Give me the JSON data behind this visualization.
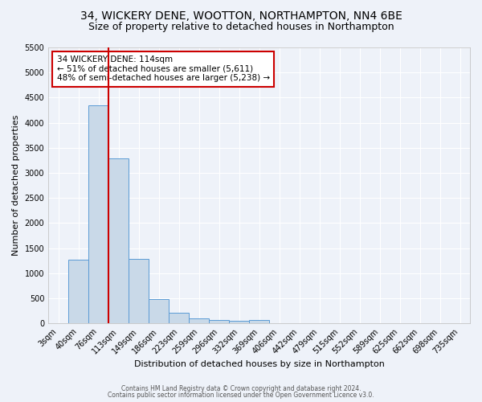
{
  "title": "34, WICKERY DENE, WOOTTON, NORTHAMPTON, NN4 6BE",
  "subtitle": "Size of property relative to detached houses in Northampton",
  "xlabel": "Distribution of detached houses by size in Northampton",
  "ylabel": "Number of detached properties",
  "bar_labels": [
    "3sqm",
    "40sqm",
    "76sqm",
    "113sqm",
    "149sqm",
    "186sqm",
    "223sqm",
    "259sqm",
    "296sqm",
    "332sqm",
    "369sqm",
    "406sqm",
    "442sqm",
    "479sqm",
    "515sqm",
    "552sqm",
    "589sqm",
    "625sqm",
    "662sqm",
    "698sqm",
    "735sqm"
  ],
  "bar_values": [
    0,
    1270,
    4340,
    3290,
    1290,
    480,
    210,
    90,
    70,
    50,
    70,
    0,
    0,
    0,
    0,
    0,
    0,
    0,
    0,
    0,
    0
  ],
  "bar_color": "#c9d9e8",
  "bar_edgecolor": "#5b9bd5",
  "ylim": [
    0,
    5500
  ],
  "yticks": [
    0,
    500,
    1000,
    1500,
    2000,
    2500,
    3000,
    3500,
    4000,
    4500,
    5000,
    5500
  ],
  "vline_x_index": 3,
  "vline_color": "#cc0000",
  "annotation_line1": "34 WICKERY DENE: 114sqm",
  "annotation_line2": "← 51% of detached houses are smaller (5,611)",
  "annotation_line3": "48% of semi-detached houses are larger (5,238) →",
  "annotation_box_color": "#cc0000",
  "background_color": "#eef2f9",
  "grid_color": "#ffffff",
  "footer_line1": "Contains HM Land Registry data © Crown copyright and database right 2024.",
  "footer_line2": "Contains public sector information licensed under the Open Government Licence v3.0.",
  "title_fontsize": 10,
  "subtitle_fontsize": 9,
  "axis_label_fontsize": 8,
  "tick_fontsize": 7,
  "annotation_fontsize": 7.5
}
